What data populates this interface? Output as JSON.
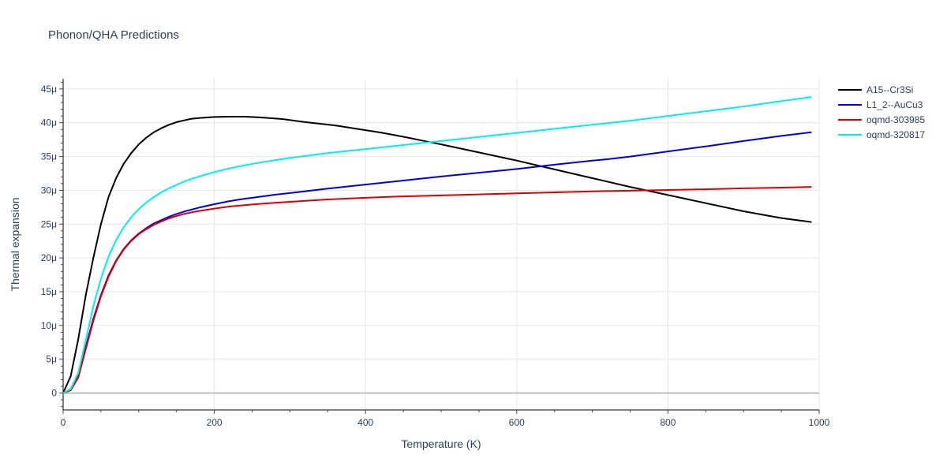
{
  "chart_data": {
    "type": "line",
    "title": "Phonon/QHA Predictions",
    "xlabel": "Temperature (K)",
    "ylabel": "Thermal expansion",
    "xlim": [
      0,
      1000
    ],
    "ylim": [
      -2.5e-06,
      4.65e-05
    ],
    "grid": true,
    "legend_position": "top-right",
    "x_ticks": [
      0,
      200,
      400,
      600,
      800,
      1000
    ],
    "x_tick_labels": [
      "0",
      "200",
      "400",
      "600",
      "800",
      "1000"
    ],
    "y_ticks": [
      0,
      5e-06,
      1e-05,
      1.5e-05,
      2e-05,
      2.5e-05,
      3e-05,
      3.5e-05,
      4e-05,
      4.5e-05
    ],
    "y_tick_labels": [
      "0",
      "5μ",
      "10μ",
      "15μ",
      "20μ",
      "25μ",
      "30μ",
      "35μ",
      "40μ",
      "45μ"
    ],
    "series": [
      {
        "name": "A15--Cr3Si",
        "color": "#000000",
        "x": [
          0,
          10,
          20,
          30,
          40,
          50,
          60,
          70,
          80,
          90,
          100,
          110,
          120,
          130,
          140,
          150,
          160,
          170,
          180,
          200,
          220,
          240,
          260,
          290,
          320,
          360,
          400,
          420,
          440,
          460,
          480,
          500,
          550,
          600,
          650,
          700,
          750,
          800,
          850,
          900,
          950,
          990
        ],
        "y": [
          0,
          2.5e-06,
          8e-06,
          1.45e-05,
          2e-05,
          2.5e-05,
          2.9e-05,
          3.18e-05,
          3.39e-05,
          3.55e-05,
          3.68e-05,
          3.78e-05,
          3.86e-05,
          3.92e-05,
          3.97e-05,
          4.01e-05,
          4.035e-05,
          4.06e-05,
          4.07e-05,
          4.085e-05,
          4.09e-05,
          4.09e-05,
          4.08e-05,
          4.055e-05,
          4.01e-05,
          3.96e-05,
          3.89e-05,
          3.855e-05,
          3.815e-05,
          3.77e-05,
          3.725e-05,
          3.68e-05,
          3.56e-05,
          3.44e-05,
          3.31e-05,
          3.18e-05,
          3.05e-05,
          2.93e-05,
          2.81e-05,
          2.69e-05,
          2.59e-05,
          2.53e-05
        ]
      },
      {
        "name": "L1_2--AuCu3",
        "color": "#0000dd",
        "x": [
          0,
          10,
          20,
          30,
          40,
          50,
          60,
          70,
          80,
          90,
          100,
          110,
          120,
          130,
          140,
          150,
          160,
          170,
          180,
          200,
          220,
          240,
          260,
          280,
          300,
          350,
          400,
          450,
          500,
          550,
          600,
          650,
          700,
          720,
          750,
          800,
          850,
          900,
          950,
          990
        ],
        "y": [
          0,
          5e-07,
          2.5e-06,
          6.8e-06,
          1.1e-05,
          1.45e-05,
          1.74e-05,
          1.96e-05,
          2.13e-05,
          2.26e-05,
          2.36e-05,
          2.44e-05,
          2.51e-05,
          2.56e-05,
          2.61e-05,
          2.65e-05,
          2.685e-05,
          2.715e-05,
          2.745e-05,
          2.795e-05,
          2.84e-05,
          2.875e-05,
          2.905e-05,
          2.935e-05,
          2.96e-05,
          3.025e-05,
          3.085e-05,
          3.145e-05,
          3.205e-05,
          3.26e-05,
          3.315e-05,
          3.38e-05,
          3.44e-05,
          3.46e-05,
          3.5e-05,
          3.575e-05,
          3.65e-05,
          3.73e-05,
          3.805e-05,
          3.86e-05
        ]
      },
      {
        "name": "oqmd-303985",
        "color": "#dd0000",
        "x": [
          0,
          10,
          20,
          30,
          40,
          50,
          60,
          70,
          80,
          90,
          100,
          110,
          120,
          130,
          140,
          150,
          160,
          170,
          180,
          200,
          220,
          240,
          260,
          280,
          300,
          350,
          400,
          450,
          500,
          550,
          600,
          650,
          700,
          750,
          800,
          850,
          900,
          950,
          990
        ],
        "y": [
          0,
          4e-07,
          2.3e-06,
          6.5e-06,
          1.07e-05,
          1.43e-05,
          1.72e-05,
          1.95e-05,
          2.12e-05,
          2.25e-05,
          2.35e-05,
          2.425e-05,
          2.49e-05,
          2.54e-05,
          2.585e-05,
          2.62e-05,
          2.65e-05,
          2.675e-05,
          2.695e-05,
          2.73e-05,
          2.76e-05,
          2.78e-05,
          2.8e-05,
          2.815e-05,
          2.83e-05,
          2.865e-05,
          2.89e-05,
          2.91e-05,
          2.925e-05,
          2.94e-05,
          2.955e-05,
          2.97e-05,
          2.985e-05,
          2.995e-05,
          3.005e-05,
          3.015e-05,
          3.03e-05,
          3.04e-05,
          3.05e-05
        ]
      },
      {
        "name": "oqmd-320817",
        "color": "#00eeee",
        "x": [
          0,
          10,
          20,
          30,
          40,
          50,
          60,
          70,
          80,
          90,
          100,
          110,
          120,
          130,
          140,
          150,
          160,
          170,
          180,
          200,
          220,
          240,
          260,
          280,
          300,
          350,
          400,
          450,
          500,
          550,
          600,
          650,
          700,
          750,
          800,
          850,
          900,
          950,
          990
        ],
        "y": [
          0,
          6e-07,
          3e-06,
          7.8e-06,
          1.28e-05,
          1.69e-05,
          2.02e-05,
          2.26e-05,
          2.45e-05,
          2.6e-05,
          2.72e-05,
          2.82e-05,
          2.9e-05,
          2.97e-05,
          3.03e-05,
          3.08e-05,
          3.13e-05,
          3.17e-05,
          3.205e-05,
          3.27e-05,
          3.325e-05,
          3.37e-05,
          3.41e-05,
          3.445e-05,
          3.48e-05,
          3.55e-05,
          3.61e-05,
          3.67e-05,
          3.73e-05,
          3.79e-05,
          3.85e-05,
          3.91e-05,
          3.97e-05,
          4.03e-05,
          4.1e-05,
          4.17e-05,
          4.24e-05,
          4.32e-05,
          4.38e-05
        ]
      }
    ]
  }
}
